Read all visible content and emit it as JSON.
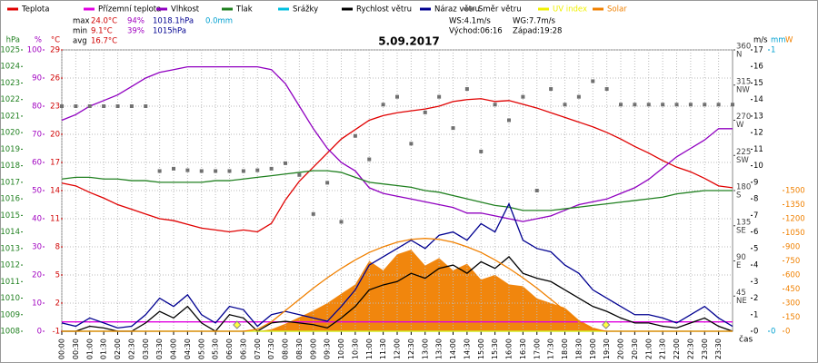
{
  "chart_data": {
    "type": "line",
    "title": "5.09.2017",
    "x_label": "čas",
    "x": [
      0,
      0.5,
      1,
      1.5,
      2,
      2.5,
      3,
      3.5,
      4,
      4.5,
      5,
      5.5,
      6,
      6.5,
      7,
      7.5,
      8,
      8.5,
      9,
      9.5,
      10,
      10.5,
      11,
      11.5,
      12,
      12.5,
      13,
      13.5,
      14,
      14.5,
      15,
      15.5,
      16,
      16.5,
      17,
      17.5,
      18,
      18.5,
      19,
      19.5,
      20,
      20.5,
      21,
      21.5,
      22,
      22.5,
      23,
      23.5,
      24
    ],
    "xlim": [
      0,
      24
    ],
    "xticks": [
      {
        "value": 0,
        "label": "00:00"
      },
      {
        "value": 0.5,
        "label": "00:30"
      },
      {
        "value": 1,
        "label": "01:00"
      },
      {
        "value": 1.5,
        "label": "01:30"
      },
      {
        "value": 2,
        "label": "02:00"
      },
      {
        "value": 2.5,
        "label": "02:30"
      },
      {
        "value": 3,
        "label": "03:00"
      },
      {
        "value": 3.5,
        "label": "03:30"
      },
      {
        "value": 4,
        "label": "04:00"
      },
      {
        "value": 4.5,
        "label": "04:30"
      },
      {
        "value": 5,
        "label": "05:00"
      },
      {
        "value": 5.5,
        "label": "05:30"
      },
      {
        "value": 6,
        "label": "06:00"
      },
      {
        "value": 6.5,
        "label": "06:30"
      },
      {
        "value": 7,
        "label": "07:00"
      },
      {
        "value": 7.5,
        "label": "07:30"
      },
      {
        "value": 8,
        "label": "08:00"
      },
      {
        "value": 8.5,
        "label": "08:30"
      },
      {
        "value": 9,
        "label": "09:00"
      },
      {
        "value": 9.5,
        "label": "09:30"
      },
      {
        "value": 10,
        "label": "10:00"
      },
      {
        "value": 10.5,
        "label": "10:30"
      },
      {
        "value": 11,
        "label": "11:00"
      },
      {
        "value": 11.5,
        "label": "11:30"
      },
      {
        "value": 12,
        "label": "12:00"
      },
      {
        "value": 12.5,
        "label": "12:30"
      },
      {
        "value": 13,
        "label": "13:00"
      },
      {
        "value": 13.5,
        "label": "13:30"
      },
      {
        "value": 14,
        "label": "14:00"
      },
      {
        "value": 14.5,
        "label": "14:30"
      },
      {
        "value": 15,
        "label": "15:00"
      },
      {
        "value": 15.5,
        "label": "15:30"
      },
      {
        "value": 16,
        "label": "16:00"
      },
      {
        "value": 16.5,
        "label": "16:30"
      },
      {
        "value": 17,
        "label": "17:00"
      },
      {
        "value": 17.5,
        "label": "17:30"
      },
      {
        "value": 18,
        "label": "18:00"
      },
      {
        "value": 18.5,
        "label": "18:30"
      },
      {
        "value": 19,
        "label": "19:00"
      },
      {
        "value": 19.5,
        "label": "19:30"
      },
      {
        "value": 20,
        "label": "20:00"
      },
      {
        "value": 20.5,
        "label": "20:30"
      },
      {
        "value": 21,
        "label": "21:00"
      },
      {
        "value": 21.5,
        "label": "21:30"
      },
      {
        "value": 22,
        "label": "22:00"
      },
      {
        "value": 22.5,
        "label": "22:30"
      },
      {
        "value": 23,
        "label": "23:00"
      },
      {
        "value": 23.5,
        "label": "23:30"
      }
    ],
    "grid": true,
    "axes": {
      "press": {
        "unit": "hPa",
        "color": "#208020",
        "lim": [
          1008,
          1025
        ],
        "ticks": [
          1008,
          1009,
          1010,
          1011,
          1012,
          1013,
          1014,
          1015,
          1016,
          1017,
          1018,
          1019,
          1020,
          1021,
          1022,
          1023,
          1024,
          1025
        ]
      },
      "hum": {
        "unit": "%",
        "color": "#a000c0",
        "lim": [
          0,
          100
        ],
        "ticks": [
          0,
          10,
          20,
          30,
          40,
          50,
          60,
          70,
          80,
          90,
          100
        ]
      },
      "temp": {
        "unit": "°C",
        "color": "#d00000",
        "lim": [
          -1,
          29
        ],
        "ticks": [
          -1,
          2,
          5,
          8,
          11,
          14,
          17,
          20,
          23,
          26,
          29
        ]
      },
      "dir": {
        "color": "#404040",
        "lim": [
          0,
          360
        ],
        "ticks": [
          45,
          90,
          135,
          180,
          225,
          270,
          315,
          360
        ],
        "tick_dirs": [
          "NE",
          "E",
          "SE",
          "S",
          "SW",
          "W",
          "NW",
          "N"
        ]
      },
      "wind": {
        "unit": "m/s",
        "color": "#000000",
        "lim": [
          0,
          17
        ],
        "ticks": [
          0,
          1,
          2,
          3,
          4,
          5,
          6,
          7,
          8,
          9,
          10,
          11,
          12,
          13,
          14,
          15,
          16,
          17
        ]
      },
      "rain": {
        "unit": "mm",
        "color": "#00a0d0",
        "lim": [
          0,
          1
        ],
        "ticks": [
          0,
          1
        ]
      },
      "solar": {
        "unit": "W",
        "color": "#f08000",
        "lim": [
          0,
          3000
        ],
        "ticks": [
          0,
          150,
          300,
          450,
          600,
          750,
          900,
          1050,
          1200,
          1350,
          1500
        ]
      }
    },
    "series": [
      {
        "name": "Teplota",
        "color": "#e00000",
        "axis": "temp",
        "style": "line",
        "values": [
          14.8,
          14.5,
          13.8,
          13.2,
          12.5,
          12,
          11.5,
          11,
          10.8,
          10.4,
          10,
          9.8,
          9.6,
          9.8,
          9.6,
          10.5,
          13,
          15,
          16.5,
          18,
          19.5,
          20.5,
          21.5,
          22,
          22.3,
          22.5,
          22.7,
          23,
          23.5,
          23.7,
          23.8,
          23.5,
          23.6,
          23.2,
          22.8,
          22.3,
          21.8,
          21.3,
          20.8,
          20.2,
          19.5,
          18.7,
          18,
          17.2,
          16.5,
          16,
          15.3,
          14.5,
          14.3
        ]
      },
      {
        "name": "Přízemní teplota",
        "color": "#e000e0",
        "axis": "temp",
        "style": "line",
        "values": [
          0,
          0,
          0,
          0,
          0,
          0,
          0,
          0,
          0,
          0,
          0,
          0,
          0,
          0,
          0,
          0,
          0,
          0,
          0,
          0,
          0,
          0,
          0,
          0,
          0,
          0,
          0,
          0,
          0,
          0,
          0,
          0,
          0,
          0,
          0,
          0,
          0,
          0,
          0,
          0,
          0,
          0,
          0,
          0,
          0,
          0,
          0,
          0,
          0
        ]
      },
      {
        "name": "Vlhkost",
        "color": "#9000c0",
        "axis": "hum",
        "style": "line",
        "values": [
          75,
          77,
          80,
          82,
          84,
          87,
          90,
          92,
          93,
          94,
          94,
          94,
          94,
          94,
          94,
          93,
          88,
          80,
          72,
          65,
          60,
          57,
          51,
          49,
          48,
          47,
          46,
          45,
          44,
          42,
          42,
          41,
          40,
          39,
          40,
          41,
          43,
          45,
          46,
          47,
          49,
          51,
          54,
          58,
          62,
          65,
          68,
          72,
          72
        ]
      },
      {
        "name": "Tlak",
        "color": "#208020",
        "axis": "press",
        "style": "line",
        "values": [
          1017.2,
          1017.3,
          1017.3,
          1017.2,
          1017.2,
          1017.1,
          1017.1,
          1017.0,
          1017.0,
          1017.0,
          1017.0,
          1017.1,
          1017.1,
          1017.2,
          1017.3,
          1017.4,
          1017.5,
          1017.6,
          1017.7,
          1017.7,
          1017.6,
          1017.3,
          1017.0,
          1016.9,
          1016.8,
          1016.7,
          1016.5,
          1016.4,
          1016.2,
          1016.0,
          1015.8,
          1015.6,
          1015.5,
          1015.3,
          1015.3,
          1015.3,
          1015.4,
          1015.5,
          1015.6,
          1015.7,
          1015.8,
          1015.9,
          1016,
          1016.1,
          1016.3,
          1016.4,
          1016.5,
          1016.5,
          1016.5
        ]
      },
      {
        "name": "Srážky",
        "color": "#00c0e0",
        "axis": "rain",
        "style": "line",
        "values": [
          0,
          0,
          0,
          0,
          0,
          0,
          0,
          0,
          0,
          0,
          0,
          0,
          0,
          0,
          0,
          0,
          0,
          0,
          0,
          0,
          0,
          0,
          0,
          0,
          0,
          0,
          0,
          0,
          0,
          0,
          0,
          0,
          0,
          0,
          0,
          0,
          0,
          0,
          0,
          0,
          0,
          0,
          0,
          0,
          0,
          0,
          0,
          0,
          0
        ]
      },
      {
        "name": "Rychlost větru",
        "color": "#000000",
        "axis": "wind",
        "style": "line",
        "values": [
          0,
          0,
          0.3,
          0.2,
          0,
          0,
          0.5,
          1.2,
          0.8,
          1.5,
          0.5,
          0,
          1.0,
          0.8,
          0,
          0.5,
          0.6,
          0.5,
          0.4,
          0.2,
          0.8,
          1.5,
          2.5,
          2.8,
          3,
          3.5,
          3.2,
          3.8,
          4,
          3.5,
          4.2,
          3.8,
          4.5,
          3.5,
          3.2,
          3,
          2.5,
          2,
          1.5,
          1.2,
          0.8,
          0.5,
          0.5,
          0.3,
          0.2,
          0.5,
          0.8,
          0.3,
          0
        ]
      },
      {
        "name": "Náraz větru",
        "color": "#000090",
        "axis": "wind",
        "style": "line",
        "values": [
          0.5,
          0.3,
          0.8,
          0.5,
          0.2,
          0.3,
          1,
          2,
          1.5,
          2.2,
          1,
          0.5,
          1.5,
          1.3,
          0.3,
          1,
          1.2,
          1,
          0.8,
          0.6,
          1.5,
          2.5,
          4,
          4.5,
          5,
          5.5,
          5,
          5.8,
          6,
          5.5,
          6.5,
          6,
          7.7,
          5.5,
          5,
          4.8,
          4,
          3.5,
          2.5,
          2,
          1.5,
          1,
          1,
          0.8,
          0.5,
          1,
          1.5,
          0.8,
          0.3
        ]
      },
      {
        "name": "Směr větru",
        "color": "#707070",
        "axis": "dir",
        "style": "points",
        "values": [
          288,
          288,
          288,
          288,
          288,
          288,
          288,
          205,
          208,
          206,
          205,
          205,
          205,
          205,
          206,
          208,
          215,
          200,
          150,
          190,
          140,
          250,
          220,
          290,
          300,
          240,
          280,
          300,
          260,
          310,
          230,
          290,
          270,
          300,
          180,
          310,
          290,
          300,
          320,
          310,
          290,
          290,
          290,
          290,
          290,
          290,
          290,
          290,
          290
        ]
      },
      {
        "name": "UV index",
        "color": "#f0f000",
        "axis": "solar",
        "style": "line",
        "values": [
          0,
          0,
          0,
          0,
          0,
          0,
          0,
          0,
          0,
          0,
          0,
          0,
          0,
          0,
          0,
          0,
          0,
          0,
          0,
          0,
          0,
          0,
          0,
          0,
          0,
          0,
          0,
          0,
          0,
          0,
          0,
          0,
          0,
          0,
          0,
          0,
          0,
          0,
          0,
          0,
          0,
          0,
          0,
          0,
          0,
          0,
          0,
          0,
          0
        ]
      },
      {
        "name": "Solar",
        "color": "#f08000",
        "axis": "solar",
        "style": "area",
        "values": [
          0,
          0,
          0,
          0,
          0,
          0,
          0,
          0,
          0,
          0,
          0,
          0,
          0,
          0,
          0,
          20,
          80,
          150,
          220,
          300,
          400,
          500,
          750,
          650,
          820,
          870,
          700,
          780,
          650,
          720,
          550,
          600,
          500,
          480,
          350,
          300,
          250,
          120,
          40,
          0,
          0,
          0,
          0,
          0,
          0,
          0,
          0,
          0,
          0
        ]
      },
      {
        "color": "#f08000",
        "axis": "solar",
        "style": "line",
        "values": [
          0,
          0,
          0,
          0,
          0,
          0,
          0,
          0,
          0,
          0,
          0,
          0,
          0,
          0,
          20,
          100,
          220,
          340,
          460,
          570,
          670,
          760,
          840,
          900,
          950,
          980,
          990,
          980,
          950,
          900,
          840,
          760,
          670,
          570,
          460,
          340,
          220,
          100,
          20,
          0,
          0,
          0,
          0,
          0,
          0,
          0,
          0,
          0,
          0
        ]
      }
    ],
    "sun_markers": [
      6.27,
      19.47
    ],
    "stats": [
      [
        "max",
        "24.0°C",
        "94%",
        "1018.1hPa",
        "0.0mm"
      ],
      [
        "min",
        "9.1°C",
        "39%",
        "1015hPa"
      ],
      [
        "avg",
        "16.7°C"
      ]
    ],
    "stat_colors": [
      "#000000",
      "#d00000",
      "#a000c0",
      "#000090",
      "#00a0d0"
    ],
    "wind_info": [
      "WS:4.1m/s",
      "WG:7.7m/s",
      "Východ:06:16",
      "Západ:19:28"
    ]
  }
}
